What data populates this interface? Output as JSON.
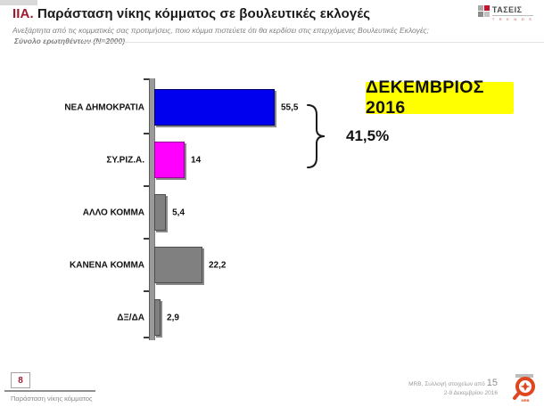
{
  "header": {
    "title_prefix": "IIA.",
    "title": "Παράσταση νίκης κόμματος σε βουλευτικές εκλογές",
    "subtitle": "Ανεξάρτητα από τις κομματικές σας προτιμήσεις, ποιο κόμμα πιστεύετε ότι θα κερδίσει στις επερχόμενες Βουλευτικές Εκλογές;",
    "sample_note": "Σύνολο ερωτηθέντων (N=2000)"
  },
  "logos": {
    "taseis_name": "ΤΑΣΕΙΣ",
    "taseis_sub": "T R E N D S",
    "mrb_label": "MRB"
  },
  "period_box": {
    "label": "ΔΕΚΕΜΒΡΙΟΣ 2016",
    "bg": "#FFFF00"
  },
  "chart_annotation": {
    "value": "41,5%"
  },
  "chart_data": {
    "type": "bar",
    "orientation": "horizontal",
    "title": "Παράσταση νίκης κόμματος σε βουλευτικές εκλογές",
    "categories": [
      "ΝΕΑ ΔΗΜΟΚΡΑΤΙΑ",
      "ΣΥ.ΡΙΖ.Α.",
      "ΑΛΛΟ ΚΟΜΜΑ",
      "ΚΑΝΕΝΑ ΚΟΜΜΑ",
      "ΔΞ/ΔΑ"
    ],
    "values": [
      55.5,
      14,
      5.4,
      22.2,
      2.9
    ],
    "value_labels": [
      "55,5",
      "14",
      "5,4",
      "22,2",
      "2,9"
    ],
    "colors": [
      "#0000ee",
      "#ff00ff",
      "#808080",
      "#808080",
      "#808080"
    ],
    "border_colors": [
      "#000066",
      "#990099",
      "#4d4d4d",
      "#4d4d4d",
      "#4d4d4d"
    ],
    "xlim": [
      0,
      60
    ],
    "grid": false,
    "legend": false,
    "annotation": "41,5%"
  },
  "footer": {
    "page_number": "8",
    "left_label": "Παράσταση νίκης κόμματος",
    "right_line1": "MRB, Συλλογή στοιχείων από",
    "right_page": "15",
    "right_line2": "2-9 Δεκεμβρίου 2016"
  }
}
